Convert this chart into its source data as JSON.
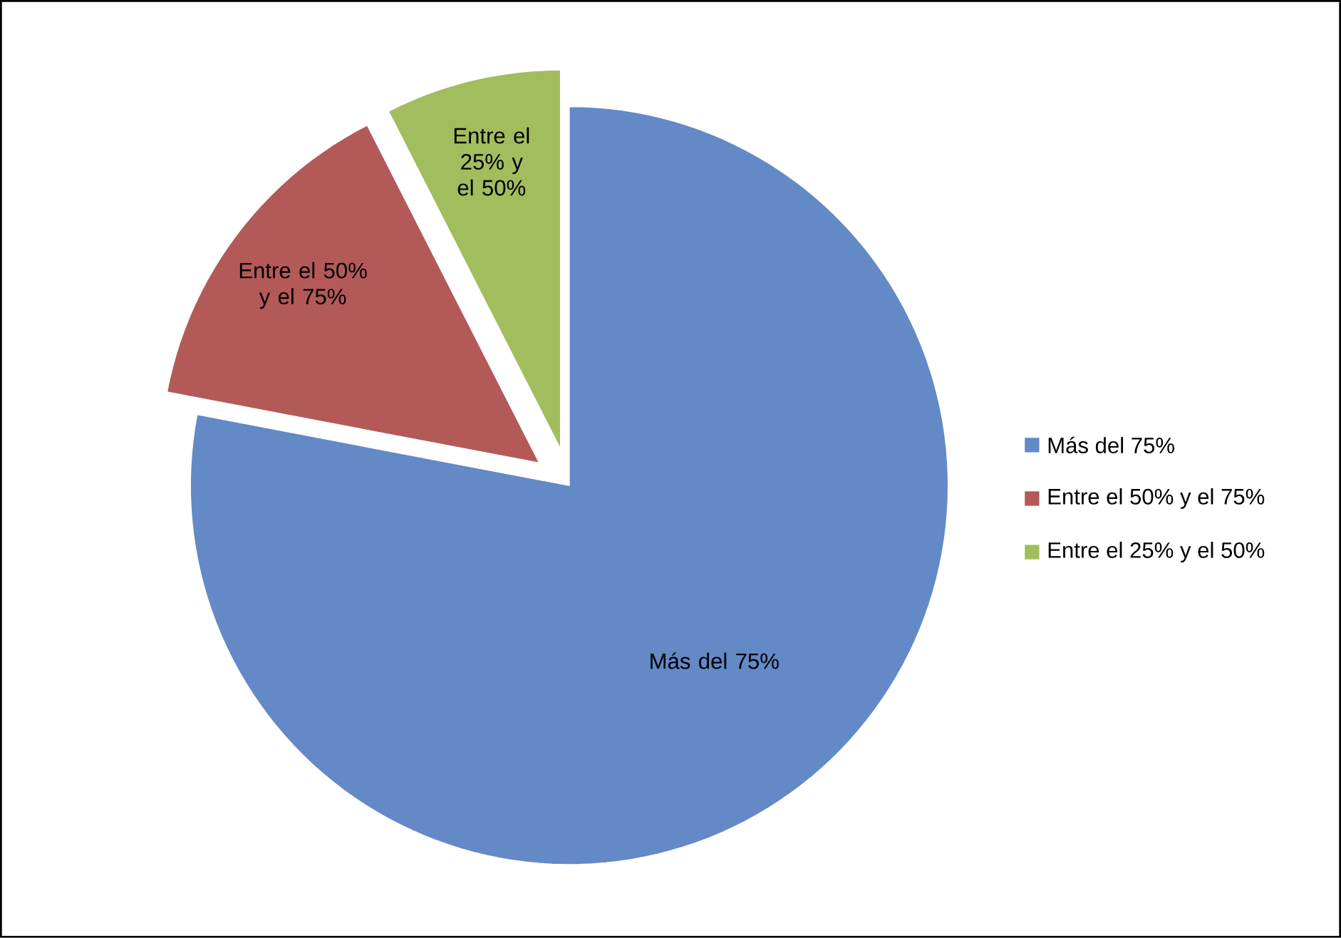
{
  "chart_data": {
    "type": "pie",
    "categories": [
      "Más del 75%",
      "Entre el 50% y el 75%",
      "Entre el 25% y el 50%"
    ],
    "values": [
      78,
      14.5,
      7.5
    ],
    "colors": [
      "#6389c6",
      "#b35a59",
      "#a2bd5e"
    ],
    "legend": "right"
  }
}
